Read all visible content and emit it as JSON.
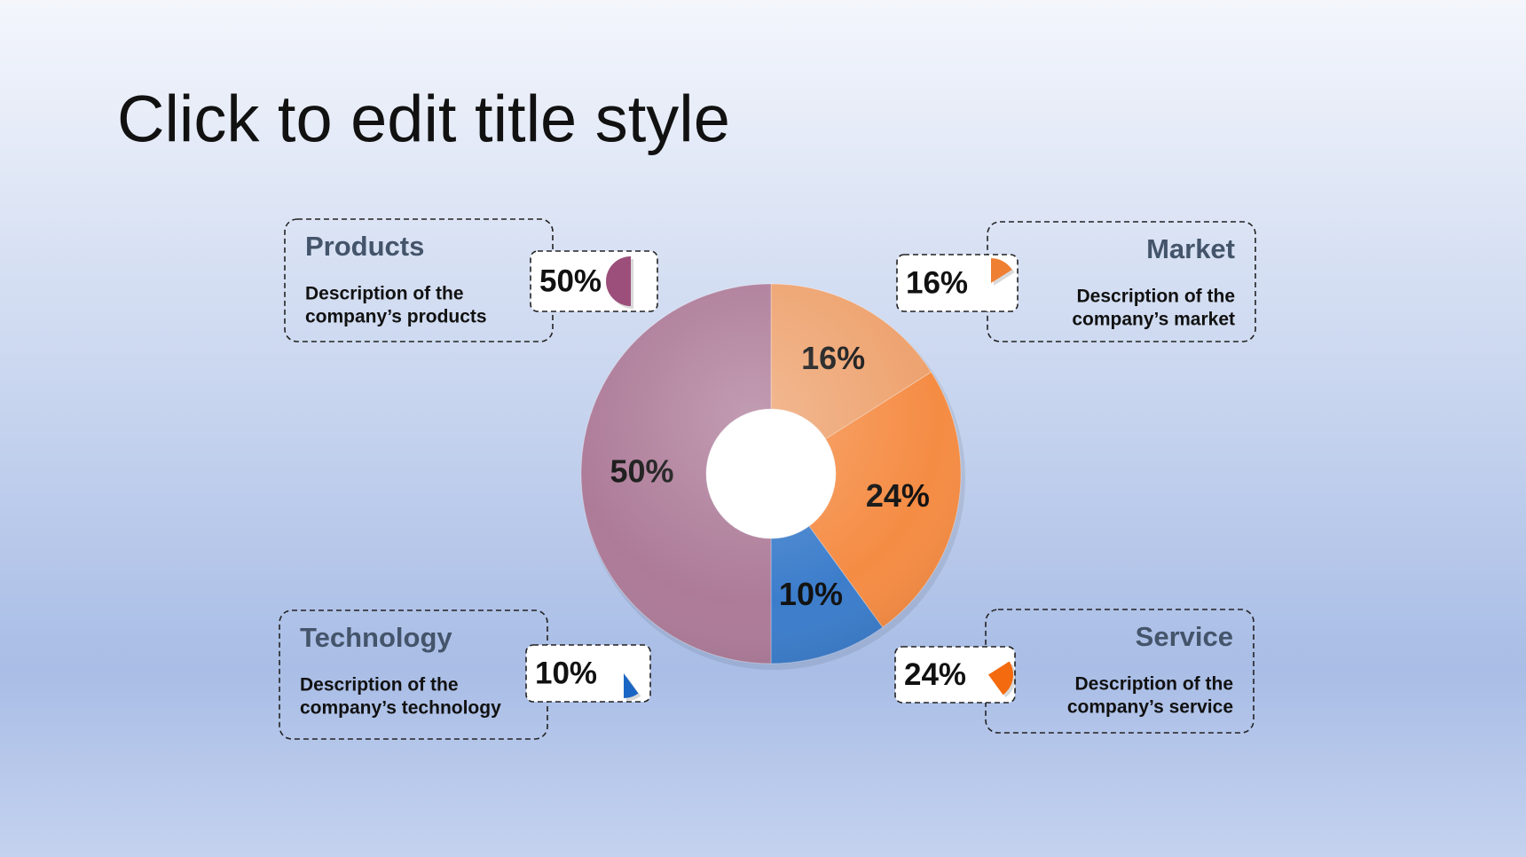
{
  "chart_data": {
    "type": "donut",
    "title": "Click to edit title style",
    "categories": [
      "Market",
      "Service",
      "Technology",
      "Products"
    ],
    "values": [
      16,
      24,
      10,
      50
    ],
    "value_labels": [
      "16%",
      "24%",
      "10%",
      "50%"
    ],
    "descriptions": [
      [
        "Description of the",
        "company’s market"
      ],
      [
        "Description of the",
        "company’s service"
      ],
      [
        "Description of the",
        "company’s technology"
      ],
      [
        "Description of the",
        "company’s products"
      ]
    ],
    "colors": [
      "#eea26e",
      "#f58c44",
      "#3c7dcb",
      "#ad7b98"
    ],
    "icon_colors": [
      "#ef7f32",
      "#f46a0e",
      "#1a66c4",
      "#9b4f7a"
    ]
  }
}
